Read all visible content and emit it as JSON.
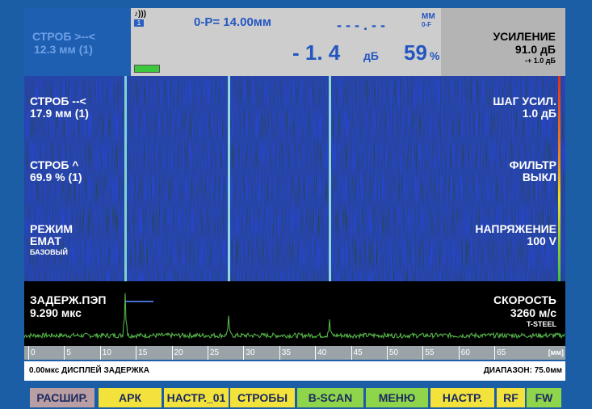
{
  "header": {
    "gate_a": {
      "label": "СТРОБ >--<",
      "value": "12.3 мм (1)"
    },
    "sound_icon": "♪)))",
    "channel": "1",
    "measure": "0-P= 14.00мм",
    "dashes": "- - - . - -",
    "unit_top": "ММ",
    "unit_sub": "0-F",
    "db_value": "- 1. 4",
    "db_unit": "дБ",
    "percent": "59",
    "percent_unit": "%",
    "gain": {
      "label": "УСИЛЕНИЕ",
      "value": "91.0 дБ",
      "step": "-+ 1.0 дБ"
    }
  },
  "left_panel": [
    {
      "label": "СТРОБ --<",
      "value": "17.9 мм (1)"
    },
    {
      "label": "СТРОБ ^",
      "value": "69.9 % (1)"
    },
    {
      "label": "РЕЖИМ",
      "value": "ЕМАТ",
      "sub": "БАЗОВЫЙ"
    }
  ],
  "right_panel": [
    {
      "label": "ШАГ УСИЛ.",
      "value": "1.0 дБ"
    },
    {
      "label": "ФИЛЬТР",
      "value": "ВЫКЛ"
    },
    {
      "label": "НАПРЯЖЕНИЕ",
      "value": "100 V"
    }
  ],
  "ascan": {
    "left": {
      "label": "ЗАДЕРЖ.ПЭП",
      "value": "9.290 мкс"
    },
    "right": {
      "label": "СКОРОСТЬ",
      "value": "3260 м/с",
      "material": "T-STEEL"
    }
  },
  "ruler": {
    "ticks": [
      0,
      5,
      10,
      15,
      20,
      25,
      30,
      35,
      40,
      45,
      50,
      55,
      60,
      65
    ],
    "unit": "[мм]"
  },
  "status": {
    "left": "0.00мкс ДИСПЛЕЙ ЗАДЕРЖКА",
    "right": "ДИАПАЗОН: 75.0мм"
  },
  "buttons": [
    {
      "label": "РАСШИР.",
      "color": "#b99ea3"
    },
    {
      "label": "АРК",
      "color": "#f4e23c"
    },
    {
      "label": "НАСТР._01",
      "color": "#f4e23c"
    },
    {
      "label": "СТРОБЫ",
      "color": "#f4e23c"
    },
    {
      "label": "B-SCAN",
      "color": "#8fd54c"
    },
    {
      "label": "МЕНЮ",
      "color": "#8fd54c"
    },
    {
      "label": "НАСТР.",
      "color": "#f4e23c"
    },
    {
      "label": "RF",
      "color": "#f4e23c"
    },
    {
      "label": "FW",
      "color": "#8fd54c"
    }
  ]
}
